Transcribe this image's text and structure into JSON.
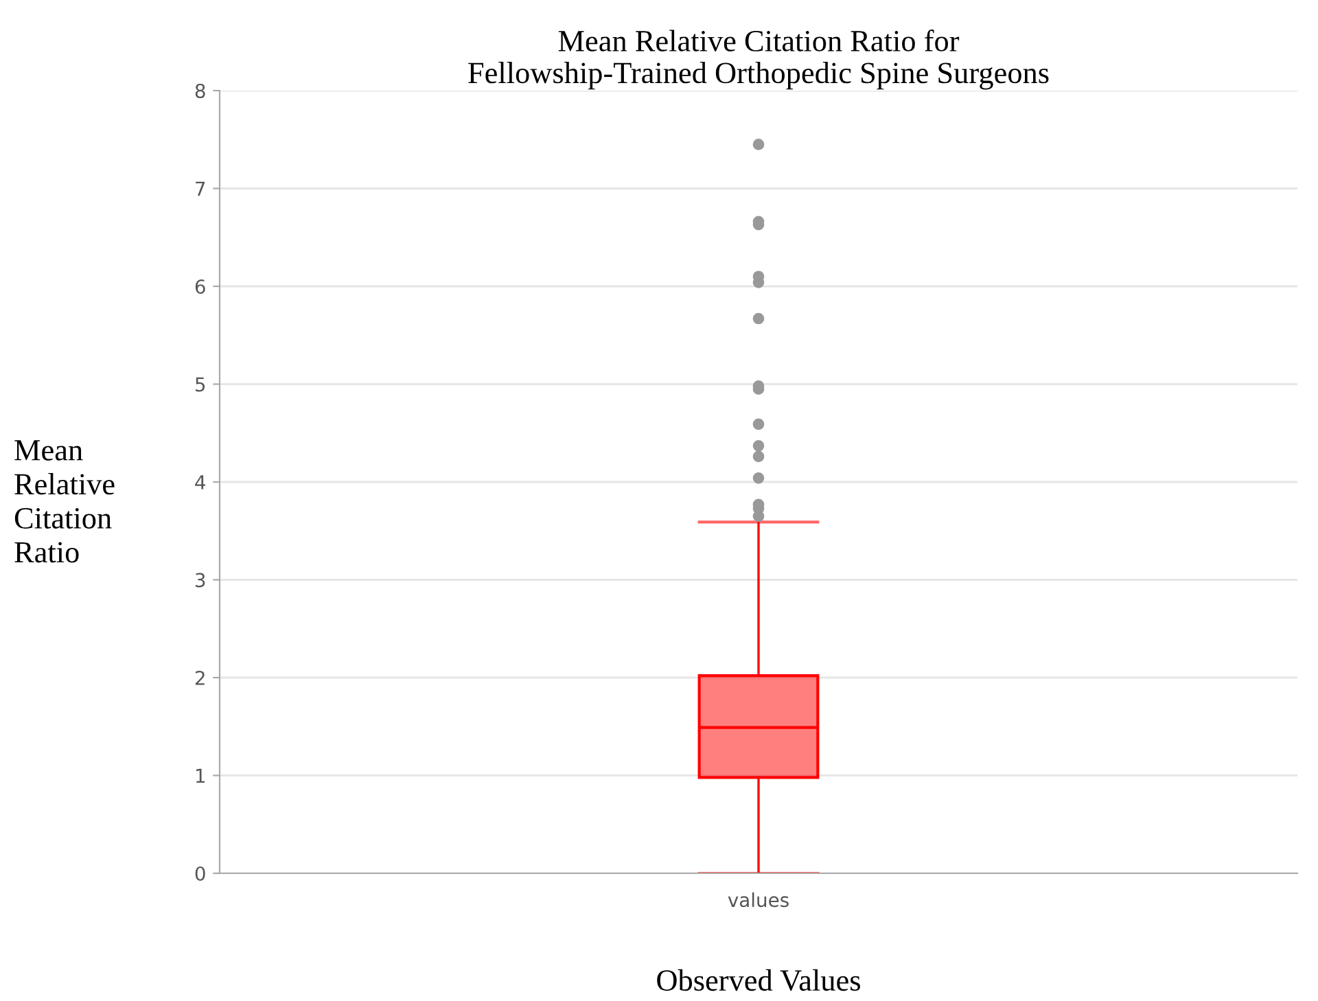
{
  "chart_data": {
    "type": "box",
    "title": "Mean Relative Citation Ratio for\nFellowship-Trained Orthopedic Spine Surgeons",
    "xlabel": "Observed Values",
    "ylabel": "Mean\nRelative\nCitation\nRatio",
    "categories": [
      "values"
    ],
    "color": "#ff0000",
    "boxes": [
      {
        "low": 0,
        "q1": 0.98,
        "median": 1.49,
        "q3": 2.02,
        "high": 3.59,
        "outliers": [
          3.65,
          3.73,
          3.77,
          4.04,
          4.26,
          4.37,
          4.59,
          4.95,
          4.98,
          5.67,
          6.04,
          6.1,
          6.63,
          6.66,
          7.45
        ]
      }
    ],
    "ylim": [
      0,
      8
    ],
    "yticks": [
      0,
      1,
      2,
      3,
      4,
      5,
      6,
      7,
      8
    ],
    "grid": "y"
  }
}
